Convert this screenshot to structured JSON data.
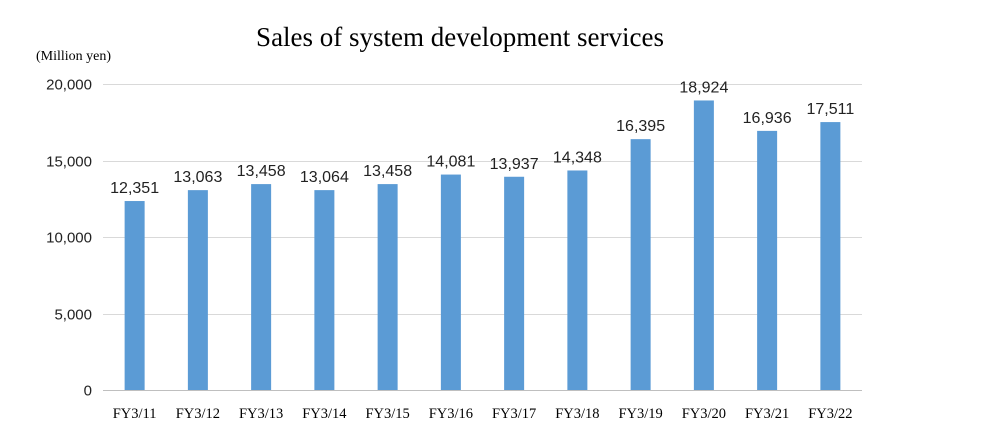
{
  "chart_data": {
    "type": "bar",
    "title": "Sales of system development services",
    "unit_label": "(Million yen)",
    "categories": [
      "FY3/11",
      "FY3/12",
      "FY3/13",
      "FY3/14",
      "FY3/15",
      "FY3/16",
      "FY3/17",
      "FY3/18",
      "FY3/19",
      "FY3/20",
      "FY3/21",
      "FY3/22"
    ],
    "values": [
      12351,
      13063,
      13458,
      13064,
      13458,
      14081,
      13937,
      14348,
      16395,
      18924,
      16936,
      17511
    ],
    "value_labels": [
      "12,351",
      "13,063",
      "13,458",
      "13,064",
      "13,458",
      "14,081",
      "13,937",
      "14,348",
      "16,395",
      "18,924",
      "16,936",
      "17,511"
    ],
    "ylim": [
      0,
      20000
    ],
    "yticks": [
      0,
      5000,
      10000,
      15000,
      20000
    ],
    "ytick_labels": [
      "0",
      "5,000",
      "10,000",
      "15,000",
      "20,000"
    ],
    "grid": true,
    "bar_color": "#5b9bd5"
  }
}
